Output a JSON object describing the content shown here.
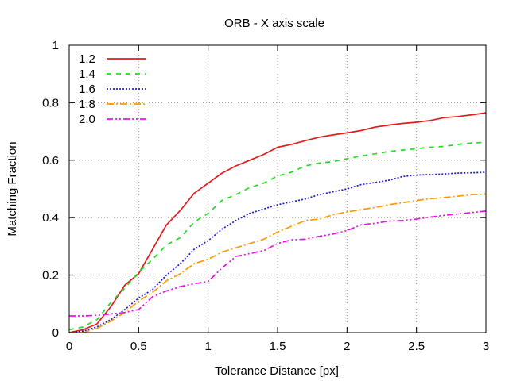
{
  "chart_data": {
    "type": "line",
    "title": "ORB - X axis scale",
    "xlabel": "Tolerance Distance [px]",
    "ylabel": "Matching Fraction",
    "xlim": [
      0,
      3
    ],
    "ylim": [
      0,
      1
    ],
    "xticks": [
      0,
      0.5,
      1,
      1.5,
      2,
      2.5,
      3
    ],
    "xtick_labels": [
      "0",
      "0.5",
      "1",
      "1.5",
      "2",
      "2.5",
      "3"
    ],
    "yticks": [
      0,
      0.2,
      0.4,
      0.6,
      0.8,
      1
    ],
    "ytick_labels": [
      "0",
      "0.2",
      "0.4",
      "0.6",
      "0.8",
      "1"
    ],
    "grid": true,
    "legend_position": "top-left",
    "x": [
      0,
      0.1,
      0.2,
      0.3,
      0.4,
      0.5,
      0.6,
      0.7,
      0.8,
      0.9,
      1.0,
      1.1,
      1.2,
      1.3,
      1.4,
      1.5,
      1.6,
      1.7,
      1.8,
      1.9,
      2.0,
      2.1,
      2.2,
      2.3,
      2.4,
      2.5,
      2.6,
      2.7,
      2.8,
      2.9,
      3.0
    ],
    "series": [
      {
        "name": "1.2",
        "color": "#e41a1c",
        "dash": "solid",
        "values": [
          0.0,
          0.01,
          0.03,
          0.09,
          0.165,
          0.205,
          0.29,
          0.375,
          0.425,
          0.485,
          0.52,
          0.555,
          0.58,
          0.6,
          0.62,
          0.645,
          0.655,
          0.668,
          0.68,
          0.688,
          0.695,
          0.703,
          0.715,
          0.722,
          0.728,
          0.732,
          0.738,
          0.748,
          0.752,
          0.758,
          0.765
        ]
      },
      {
        "name": "1.4",
        "color": "#22dd22",
        "dash": "dashed",
        "values": [
          0.01,
          0.02,
          0.045,
          0.105,
          0.155,
          0.21,
          0.255,
          0.305,
          0.33,
          0.385,
          0.415,
          0.46,
          0.48,
          0.505,
          0.52,
          0.545,
          0.558,
          0.58,
          0.59,
          0.595,
          0.605,
          0.615,
          0.622,
          0.63,
          0.635,
          0.64,
          0.645,
          0.648,
          0.655,
          0.66,
          0.662
        ]
      },
      {
        "name": "1.6",
        "color": "#1c1cd8",
        "dash": "dotted",
        "values": [
          0.0,
          0.005,
          0.02,
          0.045,
          0.08,
          0.12,
          0.15,
          0.2,
          0.24,
          0.29,
          0.32,
          0.36,
          0.39,
          0.415,
          0.43,
          0.445,
          0.455,
          0.465,
          0.48,
          0.49,
          0.5,
          0.515,
          0.522,
          0.53,
          0.543,
          0.548,
          0.55,
          0.552,
          0.555,
          0.556,
          0.558
        ]
      },
      {
        "name": "1.8",
        "color": "#ff9900",
        "dash": "dashdot",
        "values": [
          0.0,
          0.0,
          0.015,
          0.04,
          0.07,
          0.11,
          0.14,
          0.18,
          0.205,
          0.24,
          0.255,
          0.28,
          0.295,
          0.31,
          0.325,
          0.35,
          0.37,
          0.39,
          0.395,
          0.41,
          0.42,
          0.428,
          0.435,
          0.445,
          0.452,
          0.46,
          0.466,
          0.47,
          0.475,
          0.48,
          0.482
        ]
      },
      {
        "name": "2.0",
        "color": "#ee11ee",
        "dash": "dashdotdot",
        "values": [
          0.058,
          0.058,
          0.06,
          0.065,
          0.07,
          0.08,
          0.125,
          0.145,
          0.16,
          0.17,
          0.178,
          0.225,
          0.265,
          0.275,
          0.285,
          0.31,
          0.323,
          0.325,
          0.335,
          0.343,
          0.355,
          0.375,
          0.38,
          0.388,
          0.39,
          0.395,
          0.402,
          0.408,
          0.413,
          0.418,
          0.423
        ]
      }
    ]
  }
}
